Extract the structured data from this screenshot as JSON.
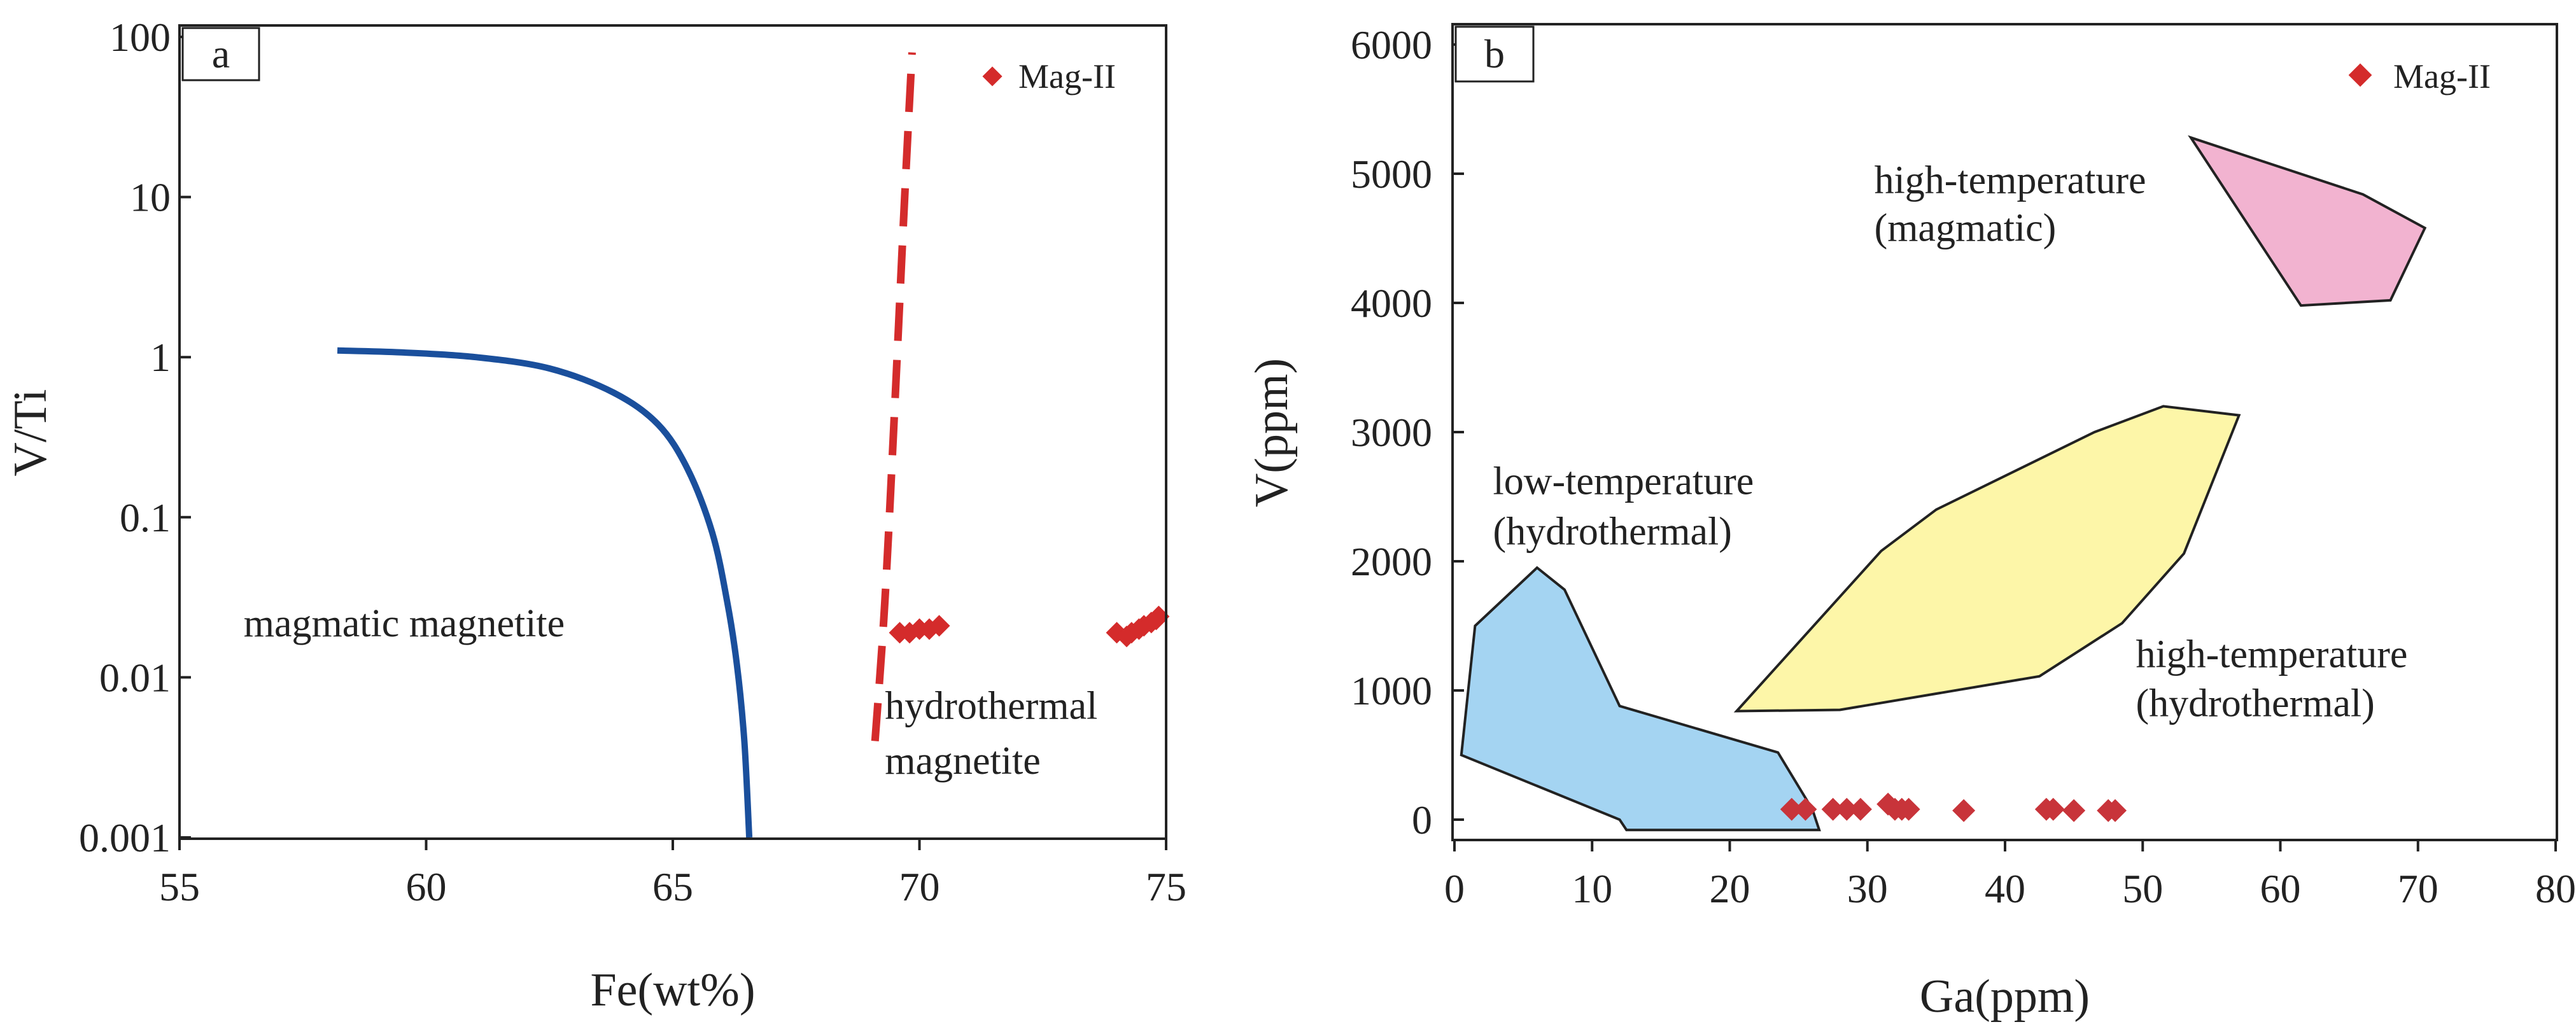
{
  "chart_data": [
    {
      "panel": "a",
      "type": "scatter",
      "xlabel": "Fe(wt%)",
      "ylabel": "V/Ti",
      "xlim": [
        55,
        75
      ],
      "ylim": [
        0.001,
        100
      ],
      "yscale": "log",
      "xticks": [
        55,
        60,
        65,
        70,
        75
      ],
      "yticks": [
        {
          "value": 100,
          "label": "100"
        },
        {
          "value": 10,
          "label": "10"
        },
        {
          "value": 1,
          "label": "1"
        },
        {
          "value": 0.1,
          "label": "0.1"
        },
        {
          "value": 0.01,
          "label": "0.01"
        },
        {
          "value": 0.001,
          "label": "0.001"
        }
      ],
      "legend": {
        "entries": [
          {
            "name": "Mag-II",
            "marker": "diamond",
            "color": "#d42b2b"
          }
        ],
        "placement": "top-right"
      },
      "annotations": [
        {
          "text": "magmatic magnetite",
          "x": 56.3,
          "y": 0.018
        },
        {
          "text": "hydrothermal",
          "x": 69.3,
          "y": 0.0055
        },
        {
          "text": "magnetite",
          "x": 69.3,
          "y": 0.0025
        }
      ],
      "curves": [
        {
          "name": "magmatic boundary",
          "style": "solid",
          "color": "#1a4f9c",
          "points": [
            [
              58.2,
              1.1
            ],
            [
              59.5,
              1.07
            ],
            [
              61.0,
              1.0
            ],
            [
              62.5,
              0.85
            ],
            [
              63.8,
              0.6
            ],
            [
              64.7,
              0.38
            ],
            [
              65.3,
              0.2
            ],
            [
              65.8,
              0.08
            ],
            [
              66.1,
              0.03
            ],
            [
              66.3,
              0.012
            ],
            [
              66.45,
              0.004
            ],
            [
              66.55,
              0.001
            ]
          ]
        },
        {
          "name": "hydrothermal boundary",
          "style": "dashed",
          "color": "#d42b2b",
          "points": [
            [
              69.1,
              0.004
            ],
            [
              69.3,
              0.03
            ],
            [
              69.5,
              0.5
            ],
            [
              69.7,
              10
            ],
            [
              69.85,
              80
            ]
          ]
        }
      ],
      "series": [
        {
          "name": "Mag-II",
          "points": [
            [
              69.6,
              0.019
            ],
            [
              69.8,
              0.019
            ],
            [
              70.0,
              0.02
            ],
            [
              70.2,
              0.02
            ],
            [
              70.4,
              0.021
            ],
            [
              74.0,
              0.019
            ],
            [
              74.2,
              0.018
            ],
            [
              74.3,
              0.019
            ],
            [
              74.45,
              0.02
            ],
            [
              74.55,
              0.021
            ],
            [
              74.7,
              0.022
            ],
            [
              74.8,
              0.023
            ],
            [
              74.85,
              0.024
            ]
          ]
        }
      ]
    },
    {
      "panel": "b",
      "type": "scatter",
      "xlabel": "Ga(ppm)",
      "ylabel": "V(ppm)",
      "xlim": [
        0,
        80
      ],
      "ylim": [
        0,
        6000
      ],
      "xticks": [
        0,
        10,
        20,
        30,
        40,
        50,
        60,
        70,
        80
      ],
      "yticks": [
        0,
        1000,
        2000,
        3000,
        4000,
        5000,
        6000
      ],
      "legend": {
        "entries": [
          {
            "name": "Mag-II",
            "marker": "diamond",
            "color": "#d42b2b"
          }
        ],
        "placement": "top-right"
      },
      "regions": [
        {
          "name": "low-temperature (hydrothermal)",
          "color": "#a4d4f2",
          "points": [
            [
              1.5,
              1500
            ],
            [
              6,
              1950
            ],
            [
              8,
              1780
            ],
            [
              12,
              880
            ],
            [
              23.5,
              520
            ],
            [
              26,
              80
            ],
            [
              26.5,
              -80
            ],
            [
              12.5,
              -80
            ],
            [
              12,
              0
            ],
            [
              0.5,
              500
            ]
          ]
        },
        {
          "name": "high-temperature (hydrothermal)",
          "color": "#fdf6a8",
          "points": [
            [
              20.5,
              840
            ],
            [
              31,
              2080
            ],
            [
              35,
              2400
            ],
            [
              46.5,
              3000
            ],
            [
              51.5,
              3200
            ],
            [
              57,
              3130
            ],
            [
              53,
              2060
            ],
            [
              48.5,
              1520
            ],
            [
              42.5,
              1110
            ],
            [
              28,
              850
            ]
          ]
        },
        {
          "name": "high-temperature (magmatic)",
          "color": "#f2b3d0",
          "points": [
            [
              53.5,
              5280
            ],
            [
              66,
              4840
            ],
            [
              70.5,
              4580
            ],
            [
              68,
              4020
            ],
            [
              61.5,
              3980
            ]
          ]
        }
      ],
      "annotations": [
        {
          "text": "low-temperature",
          "x": 2.8,
          "y": 2520
        },
        {
          "text": "(hydrothermal)",
          "x": 2.8,
          "y": 2130
        },
        {
          "text": "high-temperature",
          "x": 30.5,
          "y": 4850
        },
        {
          "text": "(magmatic)",
          "x": 30.5,
          "y": 4480
        },
        {
          "text": "high-temperature",
          "x": 49.5,
          "y": 1180
        },
        {
          "text": "(hydrothermal)",
          "x": 49.5,
          "y": 800
        }
      ],
      "series": [
        {
          "name": "Mag-II",
          "points": [
            [
              24.5,
              80
            ],
            [
              25.5,
              80
            ],
            [
              27.5,
              80
            ],
            [
              28.5,
              80
            ],
            [
              29.5,
              80
            ],
            [
              31.5,
              120
            ],
            [
              32,
              80
            ],
            [
              32.5,
              80
            ],
            [
              33,
              80
            ],
            [
              37,
              70
            ],
            [
              43,
              80
            ],
            [
              43.5,
              80
            ],
            [
              45,
              70
            ],
            [
              47.5,
              70
            ],
            [
              48,
              70
            ]
          ]
        }
      ]
    }
  ],
  "panels": {
    "a": {
      "tag": "a",
      "legend_label": "Mag-II"
    },
    "b": {
      "tag": "b",
      "legend_label": "Mag-II"
    }
  }
}
